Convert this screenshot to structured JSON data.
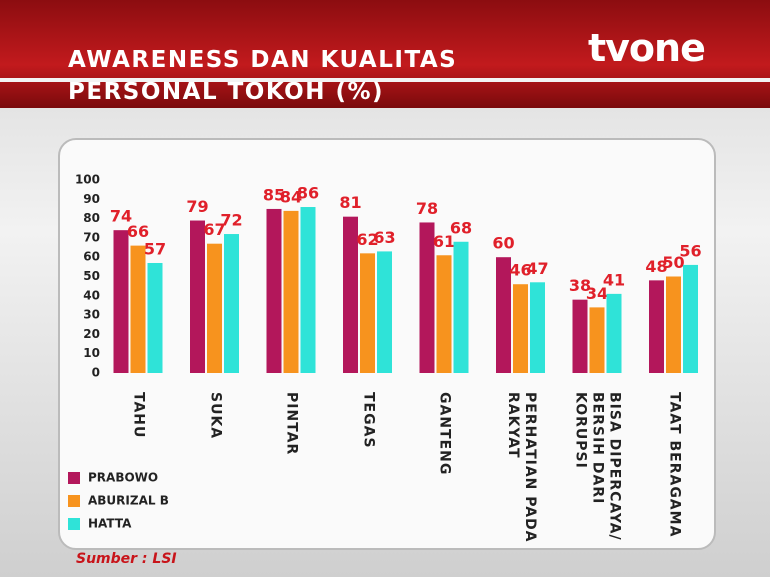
{
  "chart_data": {
    "type": "bar",
    "title": "AWARENESS DAN KUALITAS PERSONAL TOKOH (%)",
    "channel": "tvone",
    "source": "Sumber : LSI",
    "categories": [
      "TAHU",
      "SUKA",
      "PINTAR",
      "TEGAS",
      "GANTENG",
      "PERHATIAN PADA RAKYAT",
      "BISA DIPERCAYA/ BERSIH DARI KORUPSI",
      "TAAT BERAGAMA"
    ],
    "series": [
      {
        "name": "PRABOWO",
        "color": "#b3175b",
        "values": [
          74,
          79,
          85,
          81,
          78,
          60,
          38,
          48
        ]
      },
      {
        "name": "ABURIZAL B",
        "color": "#f7931e",
        "values": [
          66,
          67,
          84,
          62,
          61,
          46,
          34,
          50
        ]
      },
      {
        "name": "HATTA",
        "color": "#2fe3d8",
        "values": [
          57,
          72,
          86,
          63,
          68,
          47,
          41,
          56
        ]
      }
    ],
    "ylim": [
      0,
      100
    ],
    "yticks": [
      0,
      10,
      20,
      30,
      40,
      50,
      60,
      70,
      80,
      90,
      100
    ],
    "value_label_color": "#e0202a"
  }
}
